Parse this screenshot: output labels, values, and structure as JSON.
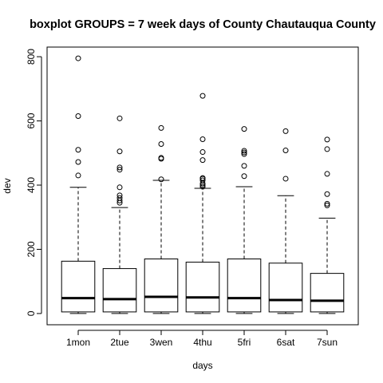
{
  "chart_data": {
    "type": "boxplot",
    "title": "boxplot GROUPS = 7 week days of County Chautauqua County",
    "xlabel": "days",
    "ylabel": "dev",
    "ylim": [
      -35,
      830
    ],
    "yticks": [
      0,
      200,
      400,
      600,
      800
    ],
    "grid": false,
    "categories": [
      "1mon",
      "2tue",
      "3wen",
      "4thu",
      "5fri",
      "6sat",
      "7sun"
    ],
    "boxes": [
      {
        "name": "1mon",
        "min": 0,
        "q1": 5,
        "median": 48,
        "q3": 163,
        "max": 393,
        "outliers": [
          430,
          472,
          510,
          615,
          795
        ]
      },
      {
        "name": "2tue",
        "min": 0,
        "q1": 5,
        "median": 45,
        "q3": 140,
        "max": 330,
        "outliers": [
          345,
          352,
          360,
          368,
          393,
          448,
          455,
          505,
          608
        ]
      },
      {
        "name": "3wen",
        "min": 0,
        "q1": 5,
        "median": 52,
        "q3": 170,
        "max": 415,
        "outliers": [
          418,
          482,
          485,
          528,
          578
        ]
      },
      {
        "name": "4thu",
        "min": 0,
        "q1": 5,
        "median": 50,
        "q3": 160,
        "max": 390,
        "outliers": [
          395,
          400,
          405,
          415,
          420,
          422,
          478,
          503,
          543,
          678
        ]
      },
      {
        "name": "5fri",
        "min": 0,
        "q1": 5,
        "median": 48,
        "q3": 170,
        "max": 395,
        "outliers": [
          428,
          460,
          497,
          502,
          507,
          575
        ]
      },
      {
        "name": "6sat",
        "min": 0,
        "q1": 5,
        "median": 42,
        "q3": 157,
        "max": 367,
        "outliers": [
          420,
          508,
          568
        ]
      },
      {
        "name": "7sun",
        "min": 0,
        "q1": 5,
        "median": 40,
        "q3": 125,
        "max": 297,
        "outliers": [
          337,
          342,
          372,
          435,
          512,
          542
        ]
      }
    ]
  }
}
